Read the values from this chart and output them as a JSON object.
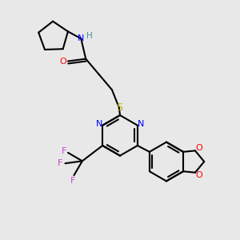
{
  "bg_color": "#e8e8e8",
  "bond_width": 1.5,
  "figsize": [
    3.0,
    3.0
  ],
  "dpi": 100,
  "xlim": [
    0,
    10
  ],
  "ylim": [
    0,
    10
  ]
}
